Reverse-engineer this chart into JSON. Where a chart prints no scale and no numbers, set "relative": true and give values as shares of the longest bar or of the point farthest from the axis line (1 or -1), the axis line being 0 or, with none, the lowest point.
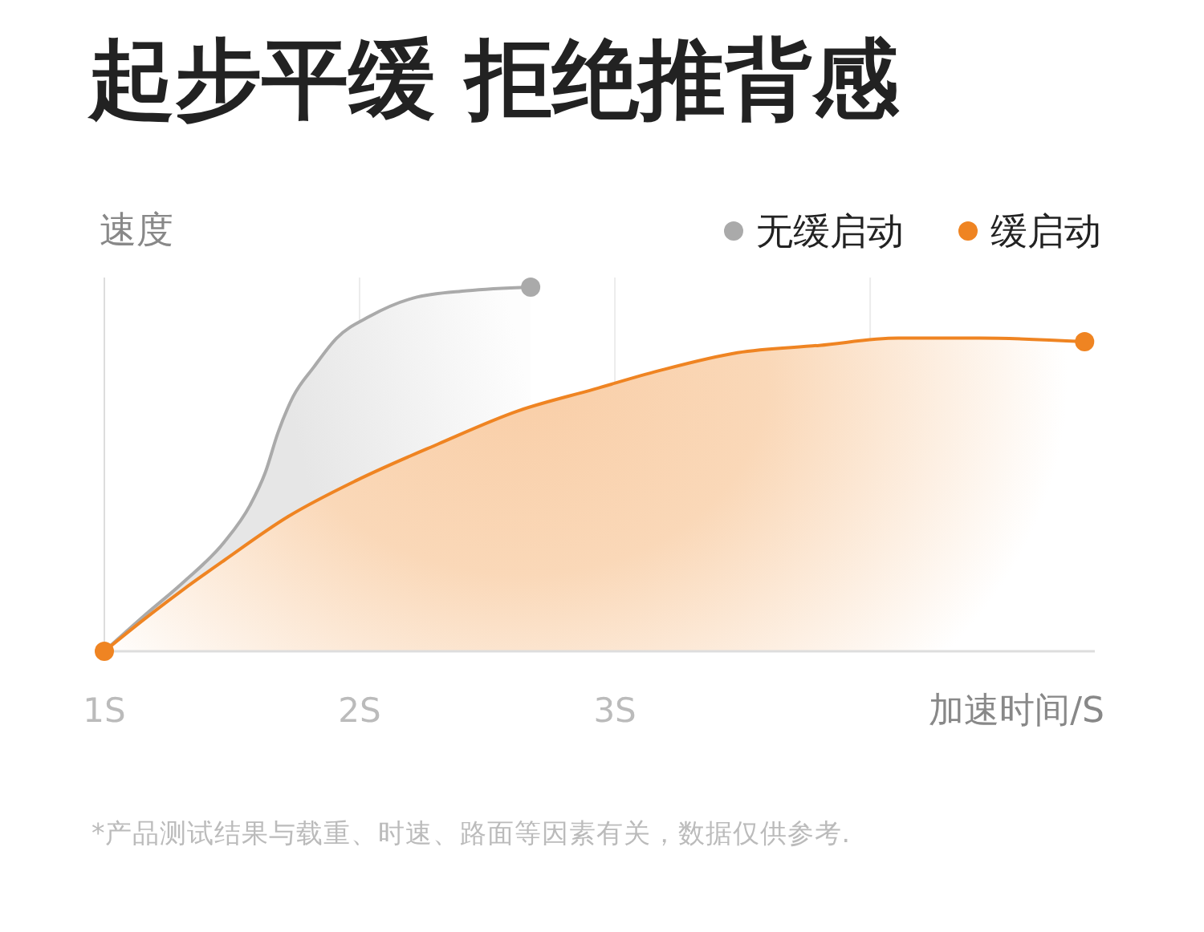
{
  "chart_data": {
    "type": "area",
    "title": "起步平缓 拒绝推背感",
    "ylabel": "速度",
    "xlabel": "加速时间/S",
    "relative": true,
    "xlim": [
      1,
      4.88
    ],
    "xticks": [
      {
        "value": 1,
        "label": "1S"
      },
      {
        "value": 2,
        "label": "2S"
      },
      {
        "value": 3,
        "label": "3S"
      },
      {
        "value": 4,
        "label": null
      }
    ],
    "grid": "x",
    "legend": "top right",
    "series": [
      {
        "name": "无缓启动",
        "color": "#aaaaaa",
        "x": [
          1,
          1.16,
          1.31,
          1.47,
          1.57,
          1.63,
          1.68,
          1.74,
          1.82,
          1.91,
          2.04,
          2.21,
          2.42,
          2.67
        ],
        "values": [
          0,
          0.1,
          0.19,
          0.3,
          0.4,
          0.49,
          0.6,
          0.7,
          0.78,
          0.86,
          0.92,
          0.97,
          0.99,
          1
        ]
      },
      {
        "name": "缓启动",
        "color": "#ef8422",
        "x": [
          1,
          1.16,
          1.31,
          1.47,
          1.72,
          1.99,
          2.31,
          2.62,
          2.92,
          3.17,
          3.48,
          3.8,
          4.11,
          4.43,
          4.84
        ],
        "values": [
          0,
          0.09,
          0.17,
          0.25,
          0.37,
          0.47,
          0.57,
          0.66,
          0.72,
          0.77,
          0.82,
          0.84,
          0.86,
          0.86,
          0.85
        ]
      },
      {
        "type": "scatter",
        "marker": "circle",
        "color": "#aaaaaa",
        "x": [
          2.67
        ],
        "values": [
          1
        ]
      },
      {
        "type": "scatter",
        "marker": "circle",
        "color": "#ef8422",
        "x": [
          1,
          4.84
        ],
        "values": [
          0,
          0.85
        ]
      }
    ],
    "annotations": [
      "*产品测试结果与载重、时速、路面等因素有关，数据仅供参考."
    ]
  }
}
